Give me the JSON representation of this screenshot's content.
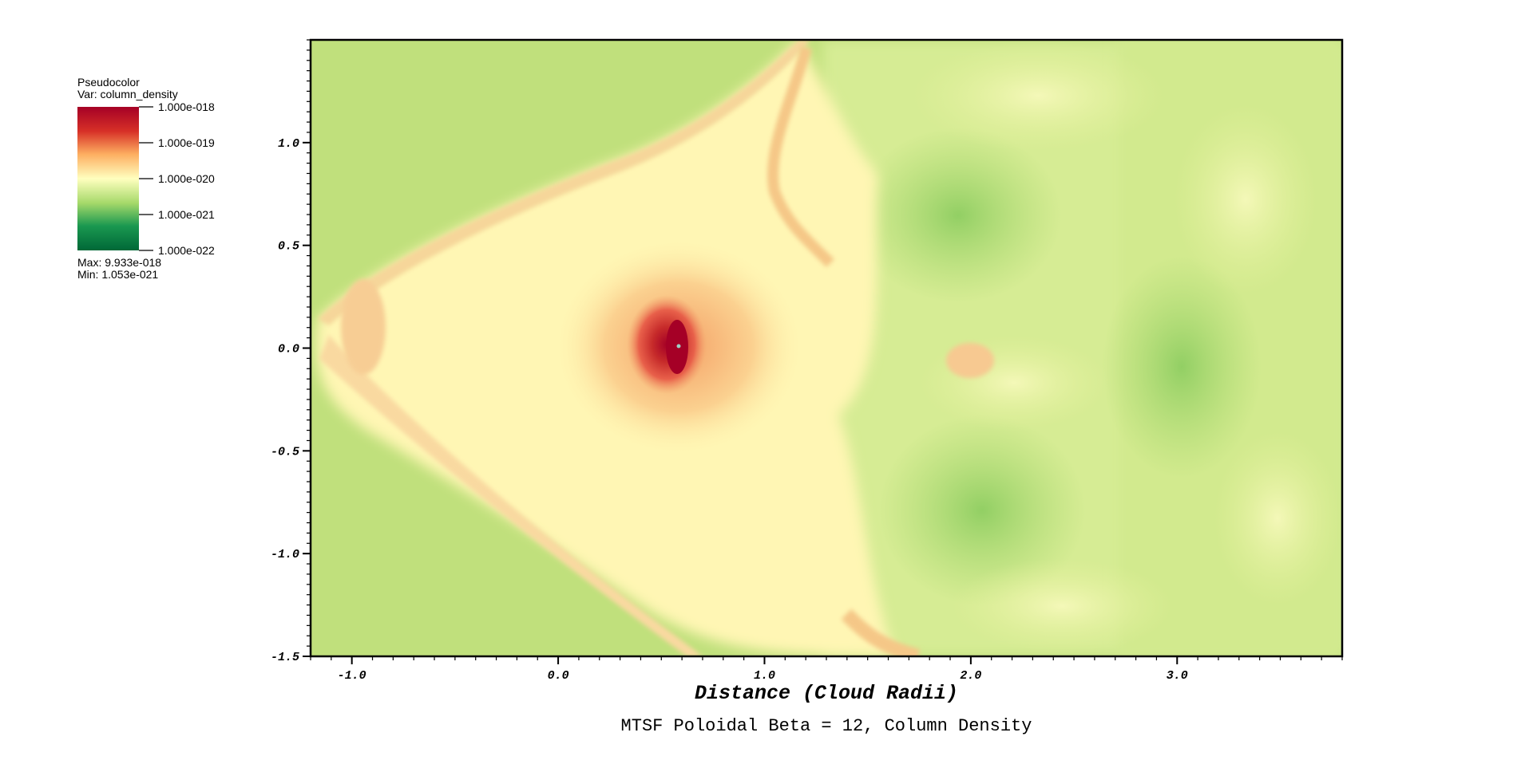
{
  "chart_data": {
    "type": "heatmap",
    "title": "MTSF Poloidal Beta = 12, Column Density",
    "xlabel": "Distance (Cloud Radii)",
    "ylabel": "",
    "xlim": [
      -1.2,
      3.8
    ],
    "ylim": [
      -1.5,
      1.5
    ],
    "x_ticks": [
      {
        "value": -1.0,
        "label": "-1.0"
      },
      {
        "value": 0.0,
        "label": "0.0"
      },
      {
        "value": 1.0,
        "label": "1.0"
      },
      {
        "value": 2.0,
        "label": "2.0"
      },
      {
        "value": 3.0,
        "label": "3.0"
      }
    ],
    "y_ticks": [
      {
        "value": 1.0,
        "label": "1.0"
      },
      {
        "value": 0.5,
        "label": "0.5"
      },
      {
        "value": 0.0,
        "label": "0.0"
      },
      {
        "value": -0.5,
        "label": "-0.5"
      },
      {
        "value": -1.0,
        "label": "-1.0"
      },
      {
        "value": -1.5,
        "label": "-1.5"
      }
    ],
    "colormap": [
      "#006837",
      "#1a9850",
      "#a6d96a",
      "#ffffbf",
      "#fdae61",
      "#d73027",
      "#a50026"
    ],
    "legend": {
      "title": "Pseudocolor",
      "variable": "Var: column_density",
      "scale": "log",
      "placement": "top-left",
      "ticks": [
        {
          "value": 1e-18,
          "label": "1.000e-018"
        },
        {
          "value": 1e-19,
          "label": "1.000e-019"
        },
        {
          "value": 1e-20,
          "label": "1.000e-020"
        },
        {
          "value": 1e-21,
          "label": "1.000e-021"
        },
        {
          "value": 1e-22,
          "label": "1.000e-022"
        }
      ],
      "max_label": "Max:  9.933e-018",
      "min_label": "Min:  1.053e-021"
    },
    "field_background": "#c0e07c",
    "core": {
      "x": 0.6,
      "y": 0.0,
      "peak": 9.933e-18
    }
  }
}
